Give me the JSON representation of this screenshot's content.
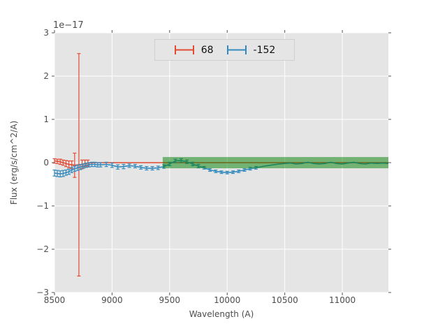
{
  "chart_data": {
    "type": "line",
    "subtype": "errorbar-spectrum",
    "title": "",
    "xlabel": "Wavelength (A)",
    "ylabel": "Flux (erg/s/cm^2/A)",
    "offset_label": "1e−17",
    "y_unit": "1e-17 erg/s/cm^2/A",
    "xlim": [
      8500,
      11400
    ],
    "ylim": [
      -3,
      3
    ],
    "grid": true,
    "plot_bg": "#e5e5e5",
    "grid_color": "#ffffff",
    "tick_color": "#555555",
    "x_ticks": [
      {
        "v": 8500,
        "label": "8500"
      },
      {
        "v": 9000,
        "label": "9000"
      },
      {
        "v": 9500,
        "label": "9500"
      },
      {
        "v": 10000,
        "label": "10000"
      },
      {
        "v": 10500,
        "label": "10500"
      },
      {
        "v": 11000,
        "label": "11000"
      }
    ],
    "y_ticks": [
      {
        "v": 3,
        "label": "3"
      },
      {
        "v": 2,
        "label": "2"
      },
      {
        "v": 1,
        "label": "1"
      },
      {
        "v": 0,
        "label": "0"
      },
      {
        "v": -1,
        "label": "−1"
      },
      {
        "v": -2,
        "label": "−2"
      },
      {
        "v": -3,
        "label": "−3"
      }
    ],
    "legend": {
      "position": "upper center",
      "entries": [
        {
          "label": "68",
          "color": "#e24a33"
        },
        {
          "label": "-152",
          "color": "#348abd"
        }
      ]
    },
    "band": {
      "x0": 9440,
      "x1": 11400,
      "y0": -0.13,
      "y1": 0.13,
      "color": "#008000",
      "opacity": 0.5
    },
    "series": [
      {
        "name": "68",
        "color": "#e24a33",
        "points": [
          [
            8500,
            0.04,
            0.05
          ],
          [
            8525,
            0.03,
            0.05
          ],
          [
            8550,
            0.02,
            0.06
          ],
          [
            8575,
            0.0,
            0.06
          ],
          [
            8600,
            -0.02,
            0.07
          ],
          [
            8625,
            -0.04,
            0.08
          ],
          [
            8650,
            -0.05,
            0.09
          ],
          [
            8675,
            -0.06,
            0.28
          ],
          [
            8712,
            -0.05,
            2.57
          ],
          [
            8740,
            -0.04,
            0.1
          ],
          [
            8765,
            -0.02,
            0.08
          ],
          [
            8790,
            -0.01,
            0.07
          ]
        ],
        "line": [
          [
            8790,
            -0.01
          ],
          [
            8850,
            0.0
          ],
          [
            9500,
            0.0
          ],
          [
            10500,
            0.0
          ],
          [
            11400,
            0.0
          ]
        ]
      },
      {
        "name": "-152",
        "color": "#348abd",
        "points": [
          [
            8500,
            -0.24,
            0.07
          ],
          [
            8525,
            -0.25,
            0.07
          ],
          [
            8550,
            -0.26,
            0.07
          ],
          [
            8575,
            -0.25,
            0.07
          ],
          [
            8600,
            -0.23,
            0.06
          ],
          [
            8625,
            -0.21,
            0.06
          ],
          [
            8650,
            -0.17,
            0.06
          ],
          [
            8675,
            -0.14,
            0.06
          ],
          [
            8700,
            -0.12,
            0.06
          ],
          [
            8725,
            -0.1,
            0.06
          ],
          [
            8750,
            -0.08,
            0.05
          ],
          [
            8775,
            -0.06,
            0.05
          ],
          [
            8800,
            -0.05,
            0.05
          ],
          [
            8825,
            -0.04,
            0.05
          ],
          [
            8850,
            -0.04,
            0.05
          ],
          [
            8875,
            -0.05,
            0.05
          ],
          [
            8900,
            -0.05,
            0.05
          ],
          [
            8950,
            -0.04,
            0.05
          ],
          [
            9000,
            -0.06,
            0.05
          ],
          [
            9050,
            -0.1,
            0.05
          ],
          [
            9100,
            -0.09,
            0.05
          ],
          [
            9150,
            -0.07,
            0.04
          ],
          [
            9200,
            -0.08,
            0.04
          ],
          [
            9250,
            -0.11,
            0.04
          ],
          [
            9300,
            -0.13,
            0.04
          ],
          [
            9350,
            -0.13,
            0.04
          ],
          [
            9400,
            -0.12,
            0.04
          ],
          [
            9450,
            -0.09,
            0.04
          ],
          [
            9500,
            -0.03,
            0.04
          ],
          [
            9550,
            0.04,
            0.04
          ],
          [
            9600,
            0.05,
            0.04
          ],
          [
            9650,
            0.02,
            0.04
          ],
          [
            9700,
            -0.03,
            0.04
          ],
          [
            9750,
            -0.08,
            0.04
          ],
          [
            9800,
            -0.12,
            0.03
          ],
          [
            9850,
            -0.17,
            0.03
          ],
          [
            9900,
            -0.2,
            0.03
          ],
          [
            9950,
            -0.22,
            0.03
          ],
          [
            10000,
            -0.23,
            0.03
          ],
          [
            10050,
            -0.22,
            0.03
          ],
          [
            10100,
            -0.2,
            0.03
          ],
          [
            10150,
            -0.17,
            0.03
          ],
          [
            10200,
            -0.14,
            0.03
          ],
          [
            10250,
            -0.12,
            0.03
          ]
        ],
        "line": [
          [
            10250,
            -0.12
          ],
          [
            10300,
            -0.09
          ],
          [
            10350,
            -0.07
          ],
          [
            10400,
            -0.05
          ],
          [
            10450,
            -0.03
          ],
          [
            10500,
            -0.02
          ],
          [
            10550,
            -0.01
          ],
          [
            10600,
            -0.03
          ],
          [
            10650,
            -0.02
          ],
          [
            10700,
            0.01
          ],
          [
            10750,
            -0.02
          ],
          [
            10800,
            -0.03
          ],
          [
            10850,
            -0.02
          ],
          [
            10900,
            0.01
          ],
          [
            10950,
            -0.02
          ],
          [
            11000,
            -0.03
          ],
          [
            11050,
            -0.01
          ],
          [
            11100,
            0.01
          ],
          [
            11150,
            -0.02
          ],
          [
            11200,
            -0.03
          ],
          [
            11250,
            -0.01
          ],
          [
            11300,
            -0.02
          ],
          [
            11350,
            -0.01
          ],
          [
            11400,
            -0.02
          ]
        ]
      }
    ]
  }
}
